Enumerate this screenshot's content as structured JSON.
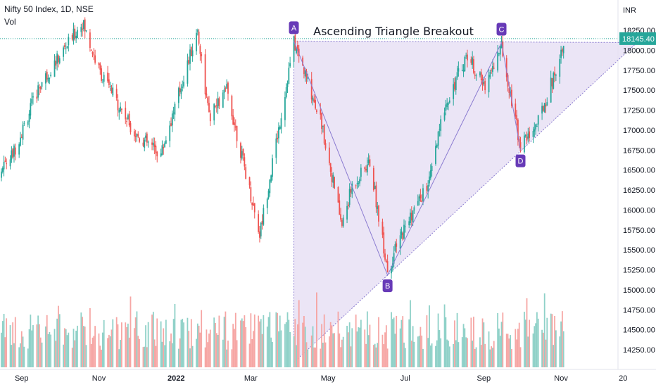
{
  "header": {
    "title": "Nifty 50 Index, 1D, NSE",
    "volume_label": "Vol"
  },
  "colors": {
    "up": "#26a69a",
    "down": "#ef5350",
    "up_volume": "#8fd1c8",
    "down_volume": "#f6a6a4",
    "pattern_fill": "#e7e0f4",
    "pattern_line": "#8a7bd0",
    "label_bg": "#673ab7",
    "price_tag": "#26a69a"
  },
  "chart_data": {
    "type": "candlestick",
    "title": "Ascending Triangle Breakout",
    "currency": "INR",
    "last_price": "18145.40",
    "y_ticks": [
      "18250.00",
      "18000.00",
      "17750.00",
      "17500.00",
      "17250.00",
      "17000.00",
      "16750.00",
      "16500.00",
      "16250.00",
      "16000.00",
      "15750.00",
      "15500.00",
      "15250.00",
      "15000.00",
      "14750.00",
      "14500.00",
      "14250.00"
    ],
    "y_tick_values": [
      18250,
      18000,
      17750,
      17500,
      17250,
      17000,
      16750,
      16500,
      16250,
      16000,
      15750,
      15500,
      15250,
      15000,
      14750,
      14500,
      14250
    ],
    "ylim": [
      14070,
      18600
    ],
    "x_ticks": [
      "Sep",
      "Nov",
      "2022",
      "Mar",
      "May",
      "Jul",
      "Sep",
      "Nov",
      "20"
    ],
    "x_tick_dates": [
      "2021-09-01",
      "2021-11-01",
      "2022-01-01",
      "2022-03-01",
      "2022-05-01",
      "2022-07-01",
      "2022-09-01",
      "2022-11-01",
      "2022-12-20"
    ],
    "x_range": [
      "2021-08-01",
      "2022-12-31"
    ],
    "grid": false,
    "pattern_points": [
      {
        "label": "A",
        "date": "2022-04-04",
        "price": 18115
      },
      {
        "label": "B",
        "date": "2022-06-17",
        "price": 15183
      },
      {
        "label": "C",
        "date": "2022-09-15",
        "price": 18096
      },
      {
        "label": "D",
        "date": "2022-09-30",
        "price": 16747
      }
    ],
    "triangle": {
      "resistance": {
        "date_start": "2022-04-04",
        "date_end": "2022-12-31",
        "price": 18096
      },
      "support": {
        "date_start": "2022-04-04",
        "price_start": 14090,
        "date_end": "2022-12-31",
        "price_end": 18096
      }
    },
    "series": [
      {
        "name": "price_path",
        "dates": [
          "2021-08-01",
          "2021-08-25",
          "2021-09-15",
          "2021-10-19",
          "2021-11-01",
          "2021-11-30",
          "2021-12-20",
          "2022-01-18",
          "2022-01-27",
          "2022-02-10",
          "2022-03-08",
          "2022-03-25",
          "2022-04-04",
          "2022-04-25",
          "2022-05-12",
          "2022-05-20",
          "2022-06-03",
          "2022-06-17",
          "2022-07-01",
          "2022-07-20",
          "2022-08-01",
          "2022-08-19",
          "2022-09-01",
          "2022-09-15",
          "2022-09-30",
          "2022-10-14",
          "2022-10-31",
          "2022-11-03"
        ],
        "values": [
          16200,
          16700,
          17550,
          18350,
          17750,
          16950,
          16700,
          18250,
          17150,
          17500,
          15700,
          17200,
          18100,
          17150,
          15800,
          16300,
          16600,
          15250,
          15800,
          16350,
          17300,
          17950,
          17550,
          18050,
          16800,
          17100,
          17900,
          18145
        ]
      }
    ]
  }
}
